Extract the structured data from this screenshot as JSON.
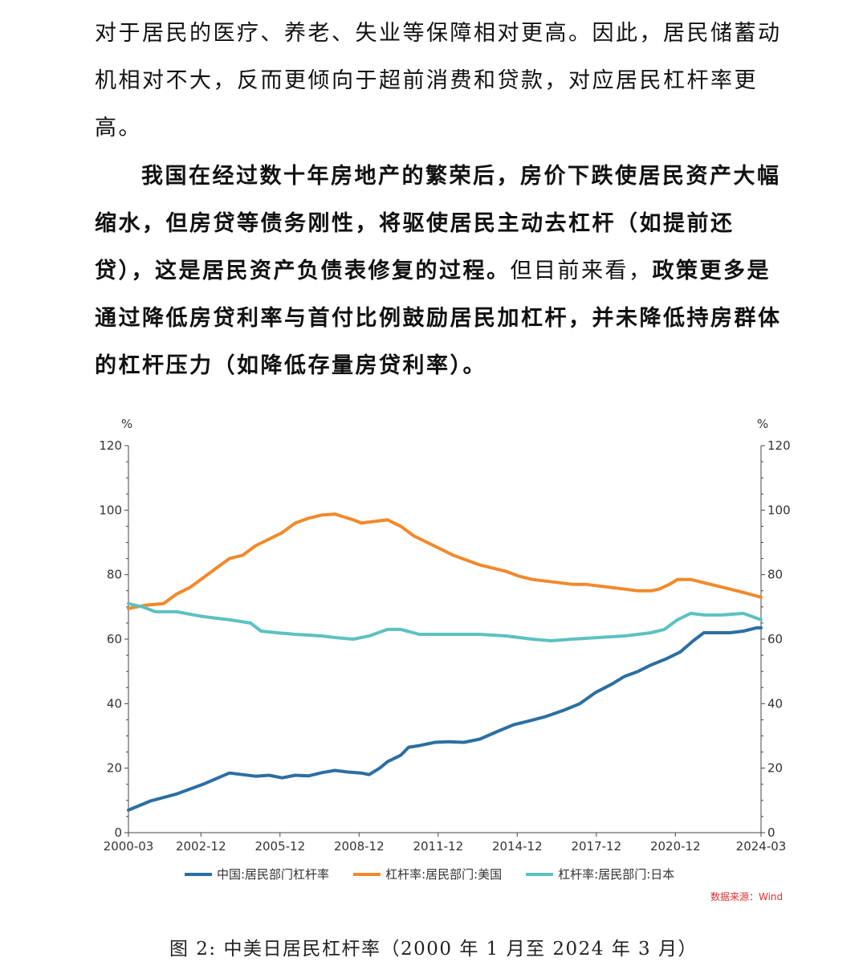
{
  "text": {
    "paragraph1": "对于居民的医疗、养老、失业等保障相对更高。因此，居民储蓄动机相对不大，反而更倾向于超前消费和贷款，对应居民杠杆率更高。",
    "paragraph2_bold1": "我国在经过数十年房地产的繁荣后，房价下跌使居民资产大幅缩水，但房贷等债务刚性，将驱使居民主动去杠杆（如提前还贷），这是居民资产负债表修复的过程。",
    "paragraph2_normal": "但目前来看，",
    "paragraph2_bold2": "政策更多是通过降低房贷利率与首付比例鼓励居民加杠杆，并未降低持房群体的杠杆压力（如降低存量房贷利率）。",
    "source": "数据来源：Wind",
    "caption": "图 2: 中美日居民杠杆率（2000 年 1 月至 2024 年 3 月）"
  },
  "colors": {
    "china": "#2b6fa2",
    "usa": "#f2892b",
    "japan": "#5cc1c2",
    "axis": "#444444",
    "source": "#e03030"
  },
  "chart_data": {
    "type": "line",
    "title": "",
    "xlabel": "",
    "ylabel_left": "%",
    "ylabel_right": "%",
    "ylim": [
      0,
      120
    ],
    "yticks": [
      0,
      20,
      40,
      60,
      80,
      100,
      120
    ],
    "x_tick_labels": [
      "2000-03",
      "2002-12",
      "2005-12",
      "2008-12",
      "2011-12",
      "2014-12",
      "2017-12",
      "2020-12",
      "2024-03"
    ],
    "x_tick_years": [
      2000.17,
      2002.92,
      2005.92,
      2008.92,
      2011.92,
      2014.92,
      2017.92,
      2020.92,
      2024.17
    ],
    "xlim": [
      2000.17,
      2024.17
    ],
    "series": [
      {
        "name": "中国:居民部门杠杆率",
        "color_key": "china",
        "points": [
          [
            2000.17,
            7
          ],
          [
            2001.0,
            9.8
          ],
          [
            2002.0,
            12
          ],
          [
            2003.0,
            15
          ],
          [
            2004.0,
            18.5
          ],
          [
            2005.0,
            17.5
          ],
          [
            2005.5,
            17.8
          ],
          [
            2006.0,
            17
          ],
          [
            2006.5,
            17.8
          ],
          [
            2007.0,
            17.6
          ],
          [
            2007.5,
            18.6
          ],
          [
            2008.0,
            19.3
          ],
          [
            2008.5,
            18.8
          ],
          [
            2009.0,
            18.5
          ],
          [
            2009.3,
            18
          ],
          [
            2009.7,
            20
          ],
          [
            2010.0,
            22
          ],
          [
            2010.5,
            24
          ],
          [
            2010.8,
            26.5
          ],
          [
            2011.2,
            27
          ],
          [
            2011.8,
            28
          ],
          [
            2012.3,
            28.2
          ],
          [
            2012.9,
            28
          ],
          [
            2013.5,
            29
          ],
          [
            2014.2,
            31.5
          ],
          [
            2014.8,
            33.5
          ],
          [
            2015.3,
            34.5
          ],
          [
            2016.0,
            36
          ],
          [
            2016.7,
            38
          ],
          [
            2017.3,
            40
          ],
          [
            2017.9,
            43.5
          ],
          [
            2018.5,
            46
          ],
          [
            2019.0,
            48.5
          ],
          [
            2019.5,
            50
          ],
          [
            2020.0,
            52
          ],
          [
            2020.6,
            54
          ],
          [
            2021.1,
            56
          ],
          [
            2021.6,
            59.5
          ],
          [
            2022.0,
            62
          ],
          [
            2022.5,
            62
          ],
          [
            2023.0,
            62
          ],
          [
            2023.5,
            62.5
          ],
          [
            2024.0,
            63.5
          ],
          [
            2024.17,
            63.5
          ]
        ]
      },
      {
        "name": "杠杆率:居民部门:美国",
        "color_key": "usa",
        "points": [
          [
            2000.17,
            69.5
          ],
          [
            2000.8,
            70.5
          ],
          [
            2001.5,
            71
          ],
          [
            2002.0,
            74
          ],
          [
            2002.5,
            76
          ],
          [
            2003.0,
            79
          ],
          [
            2003.5,
            82
          ],
          [
            2004.0,
            85
          ],
          [
            2004.5,
            86
          ],
          [
            2005.0,
            89
          ],
          [
            2005.5,
            91
          ],
          [
            2006.0,
            93
          ],
          [
            2006.5,
            96
          ],
          [
            2007.0,
            97.5
          ],
          [
            2007.5,
            98.5
          ],
          [
            2008.0,
            98.8
          ],
          [
            2008.3,
            98
          ],
          [
            2008.7,
            97
          ],
          [
            2009.0,
            96
          ],
          [
            2009.5,
            96.5
          ],
          [
            2010.0,
            97
          ],
          [
            2010.5,
            95
          ],
          [
            2011.0,
            92
          ],
          [
            2011.5,
            90
          ],
          [
            2012.0,
            88
          ],
          [
            2012.5,
            86
          ],
          [
            2013.0,
            84.5
          ],
          [
            2013.5,
            83
          ],
          [
            2014.0,
            82
          ],
          [
            2014.5,
            81
          ],
          [
            2015.0,
            79.5
          ],
          [
            2015.5,
            78.5
          ],
          [
            2016.0,
            78
          ],
          [
            2016.5,
            77.5
          ],
          [
            2017.0,
            77
          ],
          [
            2017.5,
            77
          ],
          [
            2018.0,
            76.5
          ],
          [
            2018.5,
            76
          ],
          [
            2019.0,
            75.5
          ],
          [
            2019.5,
            75
          ],
          [
            2020.0,
            75
          ],
          [
            2020.3,
            75.5
          ],
          [
            2020.7,
            77
          ],
          [
            2021.0,
            78.5
          ],
          [
            2021.5,
            78.5
          ],
          [
            2022.0,
            77.5
          ],
          [
            2022.5,
            76.5
          ],
          [
            2023.0,
            75.5
          ],
          [
            2023.5,
            74.5
          ],
          [
            2024.17,
            73
          ]
        ]
      },
      {
        "name": "杠杆率:居民部门:日本",
        "color_key": "japan",
        "points": [
          [
            2000.17,
            71
          ],
          [
            2000.7,
            70
          ],
          [
            2001.2,
            68.5
          ],
          [
            2002.0,
            68.5
          ],
          [
            2003.0,
            67
          ],
          [
            2004.0,
            66
          ],
          [
            2004.8,
            65
          ],
          [
            2005.2,
            62.5
          ],
          [
            2005.8,
            62
          ],
          [
            2006.5,
            61.5
          ],
          [
            2007.5,
            61
          ],
          [
            2008.0,
            60.5
          ],
          [
            2008.7,
            60
          ],
          [
            2009.3,
            61
          ],
          [
            2010.0,
            63
          ],
          [
            2010.5,
            63
          ],
          [
            2011.2,
            61.5
          ],
          [
            2011.8,
            61.5
          ],
          [
            2012.5,
            61.5
          ],
          [
            2013.5,
            61.5
          ],
          [
            2014.5,
            61
          ],
          [
            2015.5,
            60
          ],
          [
            2016.2,
            59.5
          ],
          [
            2017.0,
            60
          ],
          [
            2018.0,
            60.5
          ],
          [
            2019.0,
            61
          ],
          [
            2020.0,
            62
          ],
          [
            2020.5,
            63
          ],
          [
            2021.0,
            66
          ],
          [
            2021.5,
            68
          ],
          [
            2022.0,
            67.5
          ],
          [
            2022.7,
            67.5
          ],
          [
            2023.5,
            68
          ],
          [
            2024.17,
            66
          ]
        ]
      }
    ]
  }
}
